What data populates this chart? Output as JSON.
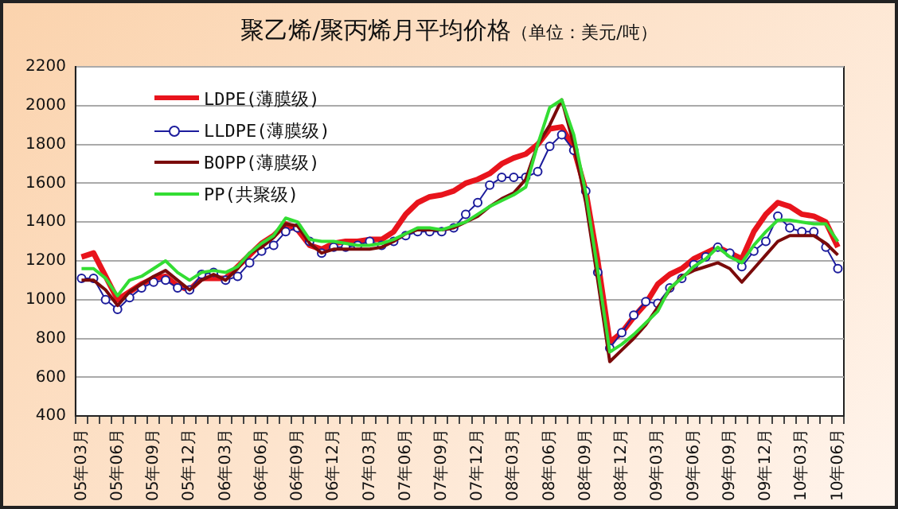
{
  "chart_data": {
    "type": "line",
    "title": "聚乙烯/聚丙烯月平均价格",
    "subtitle": "（单位：美元/吨）",
    "categories": [
      "05年03月",
      null,
      null,
      "05年06月",
      null,
      null,
      "05年09月",
      null,
      null,
      "05年12月",
      null,
      null,
      "06年03月",
      null,
      null,
      "06年06月",
      null,
      null,
      "06年09月",
      null,
      null,
      "06年12月",
      null,
      null,
      "07年03月",
      null,
      null,
      "07年06月",
      null,
      null,
      "07年09月",
      null,
      null,
      "07年12月",
      null,
      null,
      "08年03月",
      null,
      null,
      "08年06月",
      null,
      null,
      "08年09月",
      null,
      null,
      "08年12月",
      null,
      null,
      "09年03月",
      null,
      null,
      "09年06月",
      null,
      null,
      "09年09月",
      null,
      null,
      "09年12月",
      null,
      null,
      "10年03月",
      null,
      null,
      "10年06月"
    ],
    "series": [
      {
        "name": "LDPE(薄膜级)",
        "color": "#e8141c",
        "marker": "none",
        "values": [
          1220,
          1240,
          1120,
          1000,
          1040,
          1080,
          1110,
          1120,
          1070,
          1050,
          1110,
          1110,
          1110,
          1170,
          1230,
          1290,
          1330,
          1390,
          1360,
          1280,
          1260,
          1290,
          1300,
          1300,
          1310,
          1310,
          1350,
          1440,
          1500,
          1530,
          1540,
          1560,
          1600,
          1620,
          1650,
          1700,
          1730,
          1750,
          1800,
          1880,
          1890,
          1780,
          1560,
          1200,
          780,
          830,
          910,
          980,
          1080,
          1130,
          1160,
          1210,
          1240,
          1270,
          1240,
          1210,
          1350,
          1440,
          1500,
          1480,
          1440,
          1430,
          1400,
          1270
        ]
      },
      {
        "name": "LLDPE(薄膜级)",
        "color": "#1c1c9c",
        "marker": "circle",
        "values": [
          1110,
          1110,
          1000,
          950,
          1010,
          1060,
          1090,
          1100,
          1060,
          1050,
          1130,
          1140,
          1100,
          1120,
          1190,
          1250,
          1280,
          1350,
          1370,
          1300,
          1240,
          1270,
          1270,
          1280,
          1300,
          1280,
          1300,
          1330,
          1350,
          1350,
          1350,
          1370,
          1440,
          1500,
          1590,
          1630,
          1630,
          1630,
          1660,
          1790,
          1850,
          1770,
          1560,
          1140,
          750,
          830,
          920,
          990,
          980,
          1060,
          1110,
          1180,
          1220,
          1270,
          1240,
          1170,
          1250,
          1300,
          1430,
          1370,
          1350,
          1350,
          1270,
          1160
        ]
      },
      {
        "name": "BOPP(薄膜级)",
        "color": "#7a0a0a",
        "marker": "none",
        "values": [
          1100,
          1100,
          1050,
          970,
          1040,
          1080,
          1120,
          1150,
          1100,
          1050,
          1100,
          1130,
          1100,
          1160,
          1240,
          1270,
          1320,
          1390,
          1380,
          1290,
          1240,
          1260,
          1260,
          1260,
          1260,
          1270,
          1300,
          1340,
          1360,
          1360,
          1360,
          1370,
          1400,
          1430,
          1480,
          1520,
          1550,
          1620,
          1800,
          1900,
          2030,
          1800,
          1500,
          1100,
          680,
          740,
          800,
          870,
          960,
          1050,
          1120,
          1150,
          1170,
          1190,
          1160,
          1090,
          1160,
          1230,
          1300,
          1330,
          1330,
          1330,
          1290,
          1230
        ]
      },
      {
        "name": "PP(共聚级)",
        "color": "#33dd33",
        "marker": "none",
        "values": [
          1160,
          1160,
          1110,
          1020,
          1100,
          1120,
          1160,
          1200,
          1140,
          1100,
          1140,
          1150,
          1140,
          1170,
          1240,
          1290,
          1330,
          1420,
          1400,
          1310,
          1300,
          1300,
          1290,
          1280,
          1280,
          1290,
          1310,
          1340,
          1370,
          1370,
          1360,
          1380,
          1400,
          1440,
          1480,
          1510,
          1540,
          1580,
          1800,
          1990,
          2030,
          1850,
          1550,
          1150,
          730,
          770,
          820,
          880,
          940,
          1060,
          1110,
          1170,
          1210,
          1270,
          1220,
          1190,
          1280,
          1350,
          1410,
          1410,
          1400,
          1390,
          1390,
          1300
        ]
      }
    ],
    "ylim": [
      400,
      2200
    ],
    "yticks": [
      400,
      600,
      800,
      1000,
      1200,
      1400,
      1600,
      1800,
      2000,
      2200
    ],
    "grid": "y",
    "legend": "top left",
    "line_style": "solid"
  }
}
